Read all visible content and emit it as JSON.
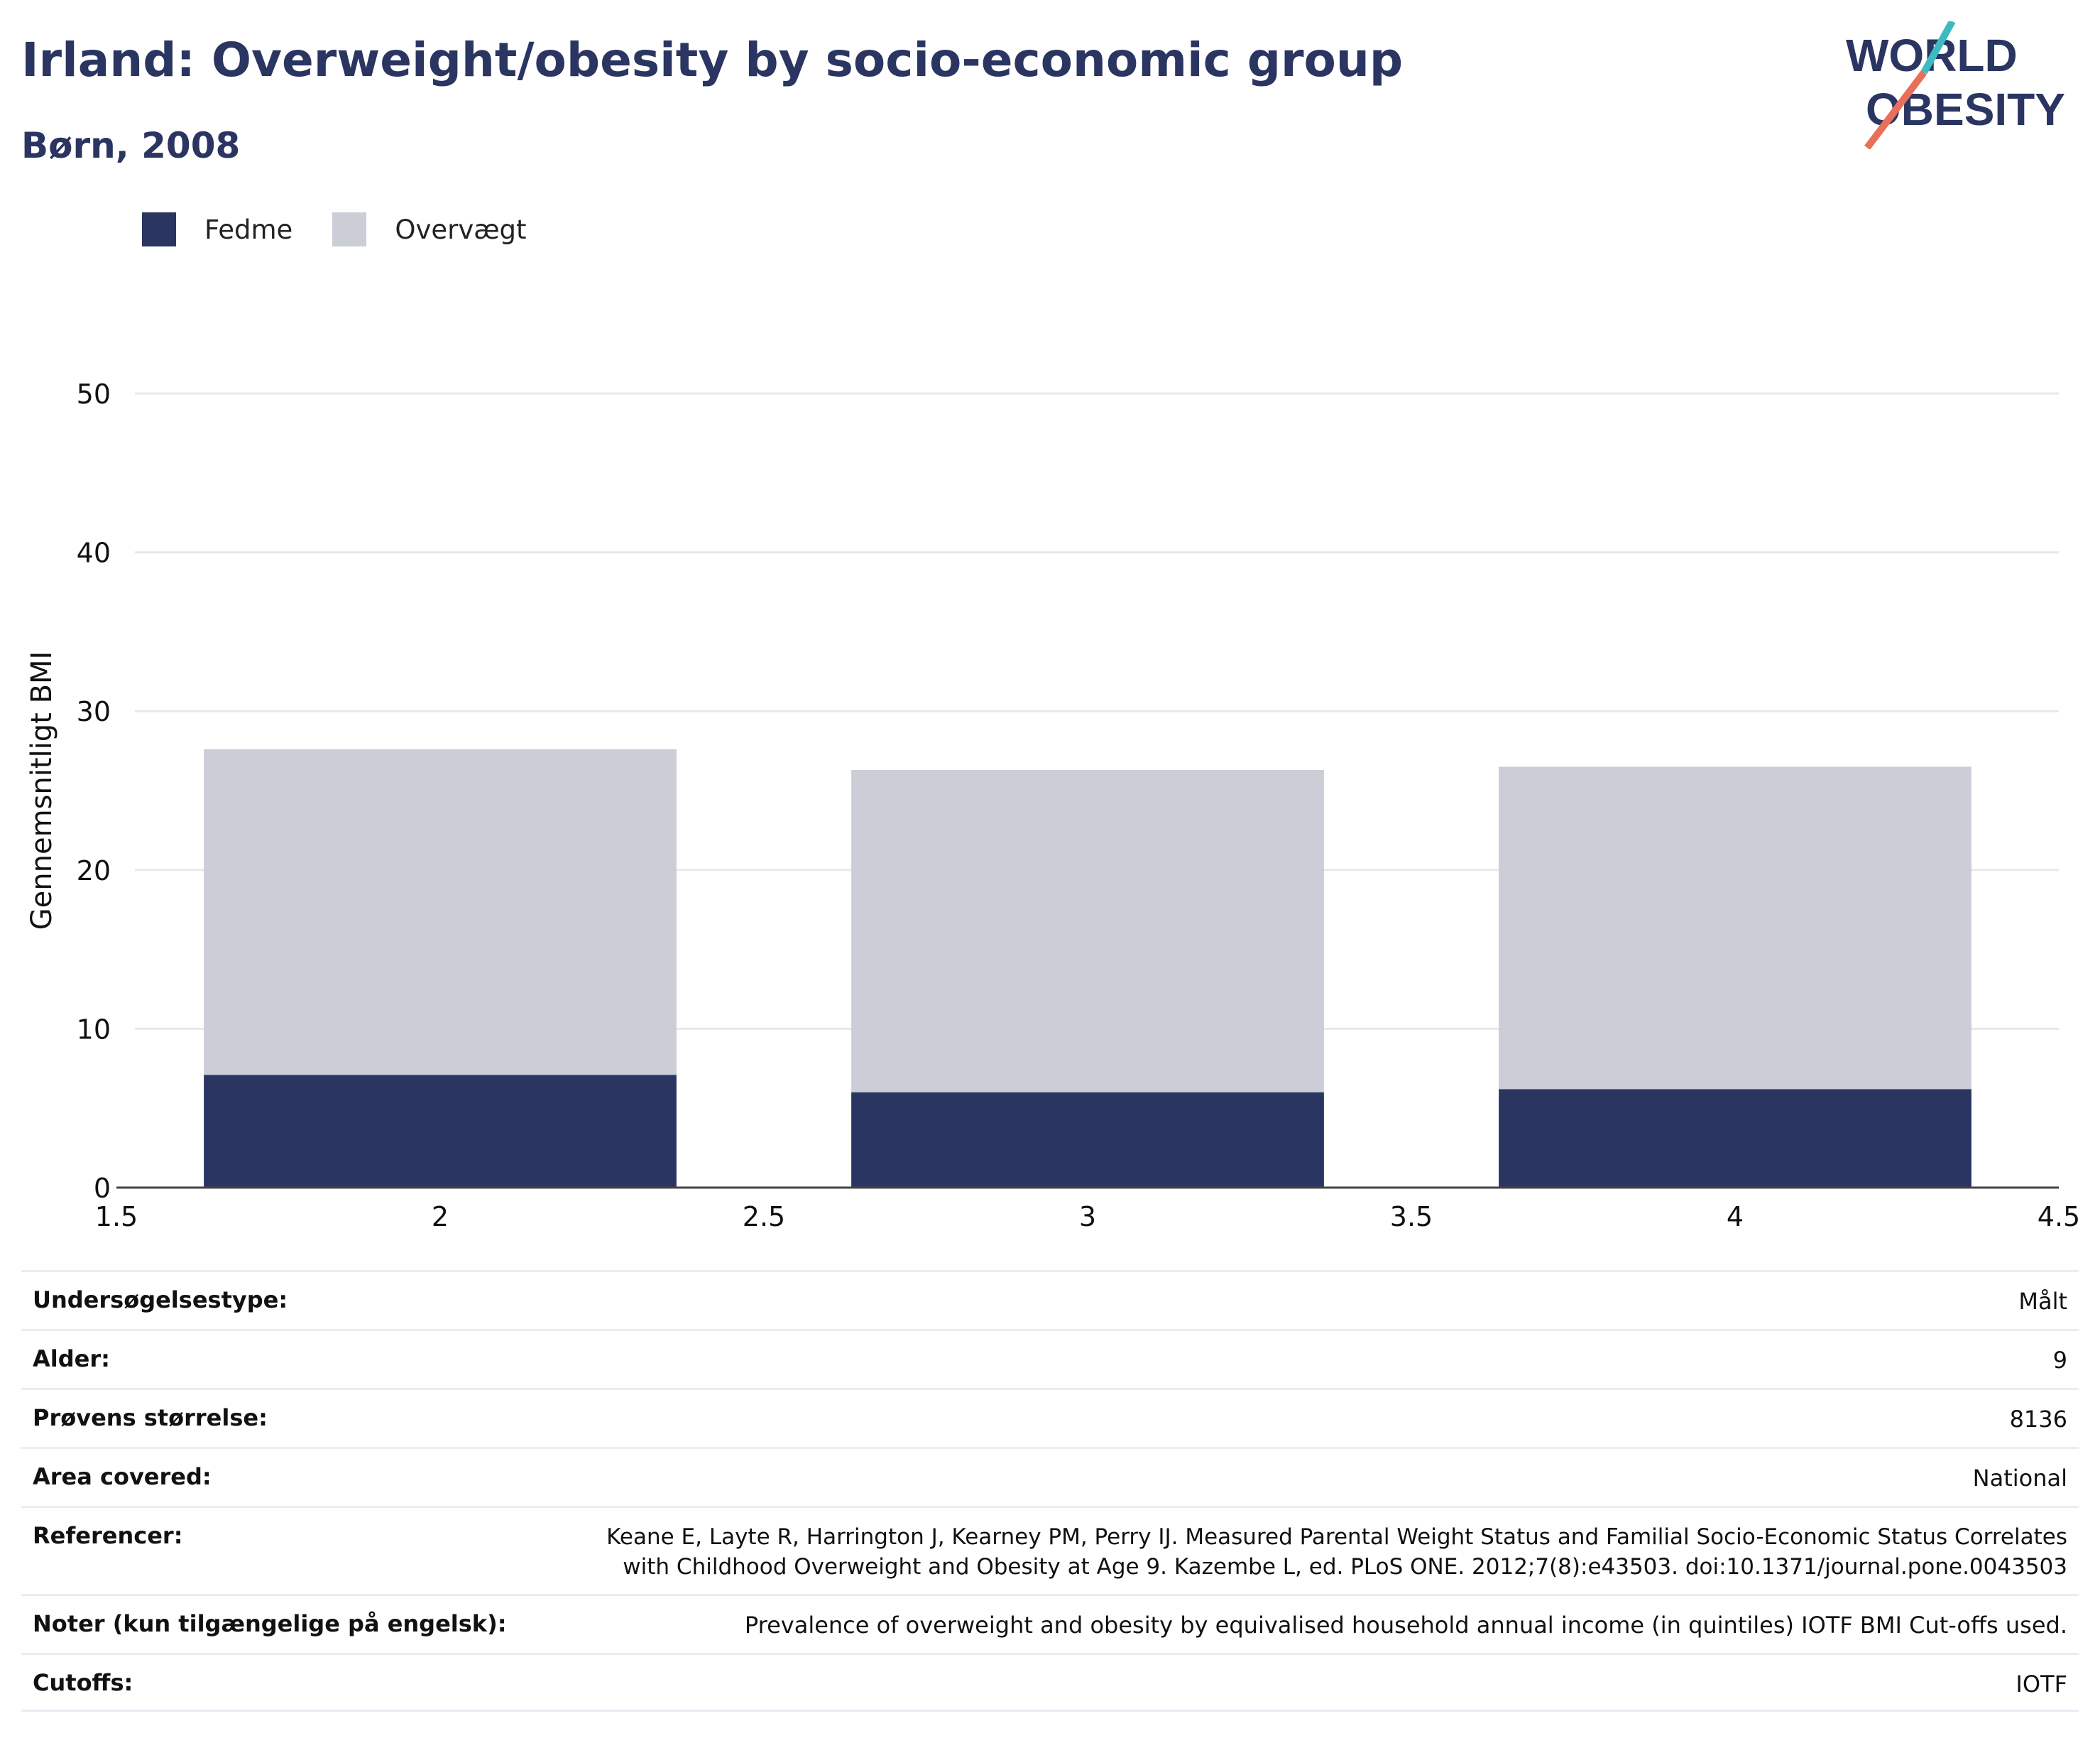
{
  "header": {
    "title": "Irland: Overweight/obesity by socio-economic group",
    "subtitle": "Børn, 2008"
  },
  "logo": {
    "line1": "WORLD",
    "line2": "OBESITY",
    "accent_teal": "#3cbcc0",
    "accent_coral": "#e8705a"
  },
  "colors": {
    "fedme": "#2a3561",
    "overvaegt": "#cbcdd7",
    "grid": "#e8e8ec",
    "axis": "#444444"
  },
  "chart_data": {
    "type": "bar",
    "stacked": true,
    "x": [
      2,
      3,
      4
    ],
    "xlim": [
      1.5,
      4.5
    ],
    "xticks": [
      "1.5",
      "2",
      "2.5",
      "3",
      "3.5",
      "4",
      "4.5"
    ],
    "ylim": [
      0,
      50
    ],
    "yticks": [
      "0",
      "10",
      "20",
      "30",
      "40",
      "50"
    ],
    "ylabel": "Gennemsnitligt BMI",
    "grid": true,
    "legend_position": "top-left",
    "series": [
      {
        "name": "Fedme",
        "values": [
          7.1,
          6.0,
          6.2
        ]
      },
      {
        "name": "Overvægt",
        "values": [
          20.5,
          20.3,
          20.3
        ]
      }
    ]
  },
  "info": [
    {
      "label": "Undersøgelsestype:",
      "value": "Målt"
    },
    {
      "label": "Alder:",
      "value": "9"
    },
    {
      "label": "Prøvens størrelse:",
      "value": "8136"
    },
    {
      "label": "Area covered:",
      "value": "National"
    },
    {
      "label": "Referencer:",
      "value": "Keane E, Layte R, Harrington J, Kearney PM, Perry IJ. Measured Parental Weight Status and Familial Socio-Economic Status Correlates with Childhood Overweight and Obesity at Age 9. Kazembe L, ed. PLoS ONE. 2012;7(8):e43503. doi:10.1371/journal.pone.0043503"
    },
    {
      "label": "Noter (kun tilgængelige på engelsk):",
      "value": "Prevalence of overweight and obesity by equivalised household annual income (in quintiles) IOTF BMI Cut-offs used."
    },
    {
      "label": "Cutoffs:",
      "value": "IOTF"
    }
  ]
}
